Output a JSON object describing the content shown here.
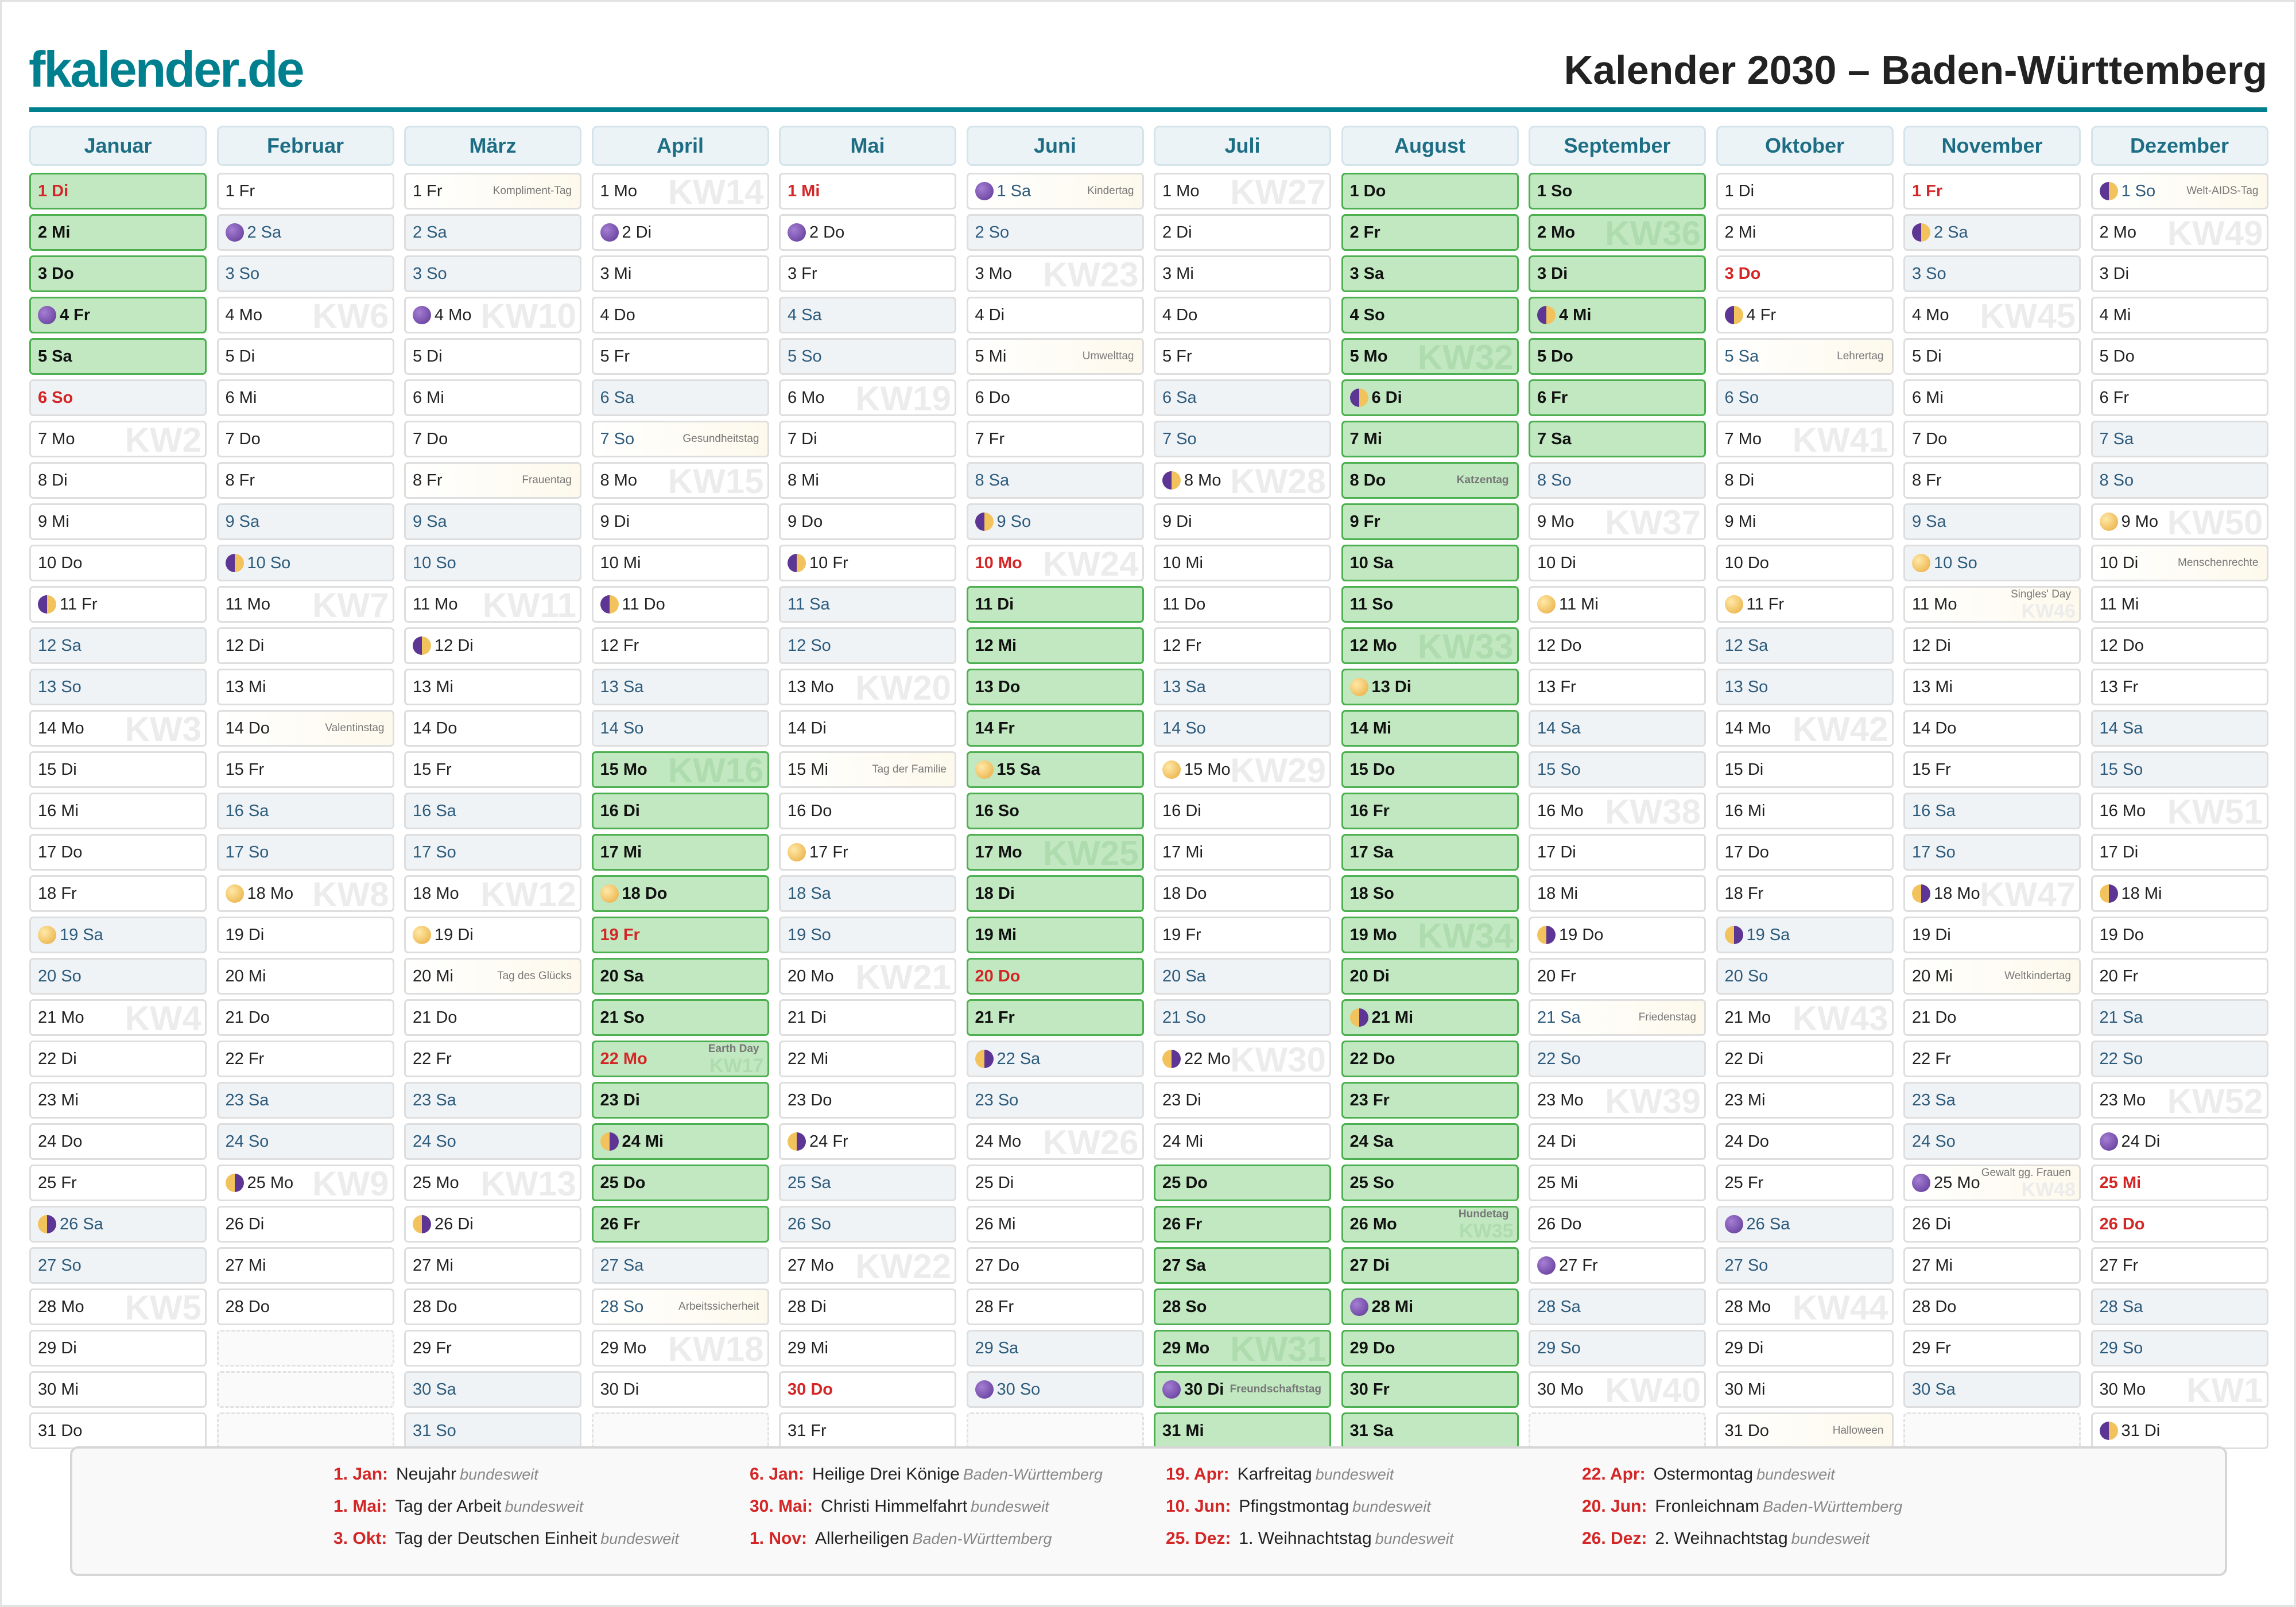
{
  "header": {
    "logo": "fkalender.de",
    "title": "Kalender 2030 – Baden-Württemberg"
  },
  "colors": {
    "brand": "#00808f",
    "holiday": "#d42626",
    "vacation": "#c1e8c1",
    "vacation_border": "#4caf50",
    "weekend": "#eff3f6"
  },
  "months": [
    {
      "name": "Januar",
      "days": [
        "1 Di",
        "2 Mi",
        "3 Do",
        "4 Fr",
        "5 Sa",
        "6 So",
        "7 Mo",
        "8 Di",
        "9 Mi",
        "10 Do",
        "11 Fr",
        "12 Sa",
        "13 So",
        "14 Mo",
        "15 Di",
        "16 Mi",
        "17 Do",
        "18 Fr",
        "19 Sa",
        "20 So",
        "21 Mo",
        "22 Di",
        "23 Mi",
        "24 Do",
        "25 Fr",
        "26 Sa",
        "27 So",
        "28 Mo",
        "29 Di",
        "30 Mi",
        "31 Do"
      ],
      "holidays": [
        1,
        6
      ],
      "vacation": [
        1,
        2,
        3,
        4,
        5
      ],
      "kw": {
        "7": "KW2",
        "14": "KW3",
        "21": "KW4",
        "28": "KW5"
      },
      "moon": {
        "4": "new",
        "11": "fq",
        "19": "full",
        "26": "lq"
      },
      "notes": {}
    },
    {
      "name": "Februar",
      "days": [
        "1 Fr",
        "2 Sa",
        "3 So",
        "4 Mo",
        "5 Di",
        "6 Mi",
        "7 Do",
        "8 Fr",
        "9 Sa",
        "10 So",
        "11 Mo",
        "12 Di",
        "13 Mi",
        "14 Do",
        "15 Fr",
        "16 Sa",
        "17 So",
        "18 Mo",
        "19 Di",
        "20 Mi",
        "21 Do",
        "22 Fr",
        "23 Sa",
        "24 So",
        "25 Mo",
        "26 Di",
        "27 Mi",
        "28 Do"
      ],
      "holidays": [],
      "vacation": [],
      "kw": {
        "4": "KW6",
        "11": "KW7",
        "18": "KW8",
        "25": "KW9"
      },
      "moon": {
        "2": "new",
        "10": "fq",
        "18": "full",
        "25": "lq"
      },
      "notes": {
        "14": "Valentinstag"
      }
    },
    {
      "name": "März",
      "days": [
        "1 Fr",
        "2 Sa",
        "3 So",
        "4 Mo",
        "5 Di",
        "6 Mi",
        "7 Do",
        "8 Fr",
        "9 Sa",
        "10 So",
        "11 Mo",
        "12 Di",
        "13 Mi",
        "14 Do",
        "15 Fr",
        "16 Sa",
        "17 So",
        "18 Mo",
        "19 Di",
        "20 Mi",
        "21 Do",
        "22 Fr",
        "23 Sa",
        "24 So",
        "25 Mo",
        "26 Di",
        "27 Mi",
        "28 Do",
        "29 Fr",
        "30 Sa",
        "31 So"
      ],
      "holidays": [],
      "vacation": [],
      "kw": {
        "4": "KW10",
        "11": "KW11",
        "18": "KW12",
        "25": "KW13"
      },
      "moon": {
        "4": "new",
        "12": "fq",
        "19": "full",
        "26": "lq"
      },
      "notes": {
        "1": "Kompliment-Tag",
        "8": "Frauentag",
        "20": "Tag des Glücks"
      }
    },
    {
      "name": "April",
      "days": [
        "1 Mo",
        "2 Di",
        "3 Mi",
        "4 Do",
        "5 Fr",
        "6 Sa",
        "7 So",
        "8 Mo",
        "9 Di",
        "10 Mi",
        "11 Do",
        "12 Fr",
        "13 Sa",
        "14 So",
        "15 Mo",
        "16 Di",
        "17 Mi",
        "18 Do",
        "19 Fr",
        "20 Sa",
        "21 So",
        "22 Mo",
        "23 Di",
        "24 Mi",
        "25 Do",
        "26 Fr",
        "27 Sa",
        "28 So",
        "29 Mo",
        "30 Di"
      ],
      "holidays": [
        19,
        22
      ],
      "vacation": [
        15,
        16,
        17,
        18,
        19,
        20,
        21,
        22,
        23,
        24,
        25,
        26
      ],
      "kw": {
        "1": "KW14",
        "8": "KW15",
        "15": "KW16",
        "22": "KW17",
        "29": "KW18"
      },
      "moon": {
        "2": "new",
        "11": "fq",
        "18": "full",
        "24": "lq"
      },
      "notes": {
        "7": "Gesundheitstag",
        "22": "Earth Day",
        "28": "Arbeitssicherheit"
      }
    },
    {
      "name": "Mai",
      "days": [
        "1 Mi",
        "2 Do",
        "3 Fr",
        "4 Sa",
        "5 So",
        "6 Mo",
        "7 Di",
        "8 Mi",
        "9 Do",
        "10 Fr",
        "11 Sa",
        "12 So",
        "13 Mo",
        "14 Di",
        "15 Mi",
        "16 Do",
        "17 Fr",
        "18 Sa",
        "19 So",
        "20 Mo",
        "21 Di",
        "22 Mi",
        "23 Do",
        "24 Fr",
        "25 Sa",
        "26 So",
        "27 Mo",
        "28 Di",
        "29 Mi",
        "30 Do",
        "31 Fr"
      ],
      "holidays": [
        1,
        30
      ],
      "vacation": [],
      "kw": {
        "6": "KW19",
        "13": "KW20",
        "20": "KW21",
        "27": "KW22"
      },
      "moon": {
        "2": "new",
        "10": "fq",
        "17": "full",
        "24": "lq"
      },
      "notes": {
        "15": "Tag der Familie"
      }
    },
    {
      "name": "Juni",
      "days": [
        "1 Sa",
        "2 So",
        "3 Mo",
        "4 Di",
        "5 Mi",
        "6 Do",
        "7 Fr",
        "8 Sa",
        "9 So",
        "10 Mo",
        "11 Di",
        "12 Mi",
        "13 Do",
        "14 Fr",
        "15 Sa",
        "16 So",
        "17 Mo",
        "18 Di",
        "19 Mi",
        "20 Do",
        "21 Fr",
        "22 Sa",
        "23 So",
        "24 Mo",
        "25 Di",
        "26 Mi",
        "27 Do",
        "28 Fr",
        "29 Sa",
        "30 So"
      ],
      "holidays": [
        10,
        20
      ],
      "vacation": [
        11,
        12,
        13,
        14,
        15,
        16,
        17,
        18,
        19,
        20,
        21
      ],
      "kw": {
        "3": "KW23",
        "10": "KW24",
        "17": "KW25",
        "24": "KW26"
      },
      "moon": {
        "1": "new",
        "9": "fq",
        "15": "full",
        "22": "lq",
        "30": "new"
      },
      "notes": {
        "1": "Kindertag",
        "5": "Umwelttag"
      }
    },
    {
      "name": "Juli",
      "days": [
        "1 Mo",
        "2 Di",
        "3 Mi",
        "4 Do",
        "5 Fr",
        "6 Sa",
        "7 So",
        "8 Mo",
        "9 Di",
        "10 Mi",
        "11 Do",
        "12 Fr",
        "13 Sa",
        "14 So",
        "15 Mo",
        "16 Di",
        "17 Mi",
        "18 Do",
        "19 Fr",
        "20 Sa",
        "21 So",
        "22 Mo",
        "23 Di",
        "24 Mi",
        "25 Do",
        "26 Fr",
        "27 Sa",
        "28 So",
        "29 Mo",
        "30 Di",
        "31 Mi"
      ],
      "holidays": [],
      "vacation": [
        25,
        26,
        27,
        28,
        29,
        30,
        31
      ],
      "kw": {
        "1": "KW27",
        "8": "KW28",
        "15": "KW29",
        "22": "KW30",
        "29": "KW31"
      },
      "moon": {
        "8": "fq",
        "15": "full",
        "22": "lq",
        "30": "new"
      },
      "notes": {
        "30": "Freundschaftstag"
      }
    },
    {
      "name": "August",
      "days": [
        "1 Do",
        "2 Fr",
        "3 Sa",
        "4 So",
        "5 Mo",
        "6 Di",
        "7 Mi",
        "8 Do",
        "9 Fr",
        "10 Sa",
        "11 So",
        "12 Mo",
        "13 Di",
        "14 Mi",
        "15 Do",
        "16 Fr",
        "17 Sa",
        "18 So",
        "19 Mo",
        "20 Di",
        "21 Mi",
        "22 Do",
        "23 Fr",
        "24 Sa",
        "25 So",
        "26 Mo",
        "27 Di",
        "28 Mi",
        "29 Do",
        "30 Fr",
        "31 Sa"
      ],
      "holidays": [],
      "vacation": [
        1,
        2,
        3,
        4,
        5,
        6,
        7,
        8,
        9,
        10,
        11,
        12,
        13,
        14,
        15,
        16,
        17,
        18,
        19,
        20,
        21,
        22,
        23,
        24,
        25,
        26,
        27,
        28,
        29,
        30,
        31
      ],
      "kw": {
        "5": "KW32",
        "12": "KW33",
        "19": "KW34",
        "26": "KW35"
      },
      "moon": {
        "6": "fq",
        "13": "full",
        "21": "lq",
        "28": "new"
      },
      "notes": {
        "8": "Katzentag",
        "26": "Hundetag"
      }
    },
    {
      "name": "September",
      "days": [
        "1 So",
        "2 Mo",
        "3 Di",
        "4 Mi",
        "5 Do",
        "6 Fr",
        "7 Sa",
        "8 So",
        "9 Mo",
        "10 Di",
        "11 Mi",
        "12 Do",
        "13 Fr",
        "14 Sa",
        "15 So",
        "16 Mo",
        "17 Di",
        "18 Mi",
        "19 Do",
        "20 Fr",
        "21 Sa",
        "22 So",
        "23 Mo",
        "24 Di",
        "25 Mi",
        "26 Do",
        "27 Fr",
        "28 Sa",
        "29 So",
        "30 Mo"
      ],
      "holidays": [],
      "vacation": [
        1,
        2,
        3,
        4,
        5,
        6,
        7
      ],
      "kw": {
        "2": "KW36",
        "9": "KW37",
        "16": "KW38",
        "23": "KW39",
        "30": "KW40"
      },
      "moon": {
        "4": "fq",
        "11": "full",
        "19": "lq",
        "27": "new"
      },
      "notes": {
        "21": "Friedenstag"
      }
    },
    {
      "name": "Oktober",
      "days": [
        "1 Di",
        "2 Mi",
        "3 Do",
        "4 Fr",
        "5 Sa",
        "6 So",
        "7 Mo",
        "8 Di",
        "9 Mi",
        "10 Do",
        "11 Fr",
        "12 Sa",
        "13 So",
        "14 Mo",
        "15 Di",
        "16 Mi",
        "17 Do",
        "18 Fr",
        "19 Sa",
        "20 So",
        "21 Mo",
        "22 Di",
        "23 Mi",
        "24 Do",
        "25 Fr",
        "26 Sa",
        "27 So",
        "28 Mo",
        "29 Di",
        "30 Mi",
        "31 Do"
      ],
      "holidays": [
        3
      ],
      "vacation": [],
      "kw": {
        "7": "KW41",
        "14": "KW42",
        "21": "KW43",
        "28": "KW44"
      },
      "moon": {
        "4": "fq",
        "11": "full",
        "19": "lq",
        "26": "new"
      },
      "notes": {
        "5": "Lehrertag",
        "31": "Halloween"
      }
    },
    {
      "name": "November",
      "days": [
        "1 Fr",
        "2 Sa",
        "3 So",
        "4 Mo",
        "5 Di",
        "6 Mi",
        "7 Do",
        "8 Fr",
        "9 Sa",
        "10 So",
        "11 Mo",
        "12 Di",
        "13 Mi",
        "14 Do",
        "15 Fr",
        "16 Sa",
        "17 So",
        "18 Mo",
        "19 Di",
        "20 Mi",
        "21 Do",
        "22 Fr",
        "23 Sa",
        "24 So",
        "25 Mo",
        "26 Di",
        "27 Mi",
        "28 Do",
        "29 Fr",
        "30 Sa"
      ],
      "holidays": [
        1
      ],
      "vacation": [],
      "kw": {
        "4": "KW45",
        "11": "KW46",
        "18": "KW47",
        "25": "KW48"
      },
      "moon": {
        "2": "fq",
        "10": "full",
        "18": "lq",
        "25": "new"
      },
      "notes": {
        "11": "Singles' Day",
        "20": "Weltkindertag",
        "25": "Gewalt gg. Frauen"
      }
    },
    {
      "name": "Dezember",
      "days": [
        "1 So",
        "2 Mo",
        "3 Di",
        "4 Mi",
        "5 Do",
        "6 Fr",
        "7 Sa",
        "8 So",
        "9 Mo",
        "10 Di",
        "11 Mi",
        "12 Do",
        "13 Fr",
        "14 Sa",
        "15 So",
        "16 Mo",
        "17 Di",
        "18 Mi",
        "19 Do",
        "20 Fr",
        "21 Sa",
        "22 So",
        "23 Mo",
        "24 Di",
        "25 Mi",
        "26 Do",
        "27 Fr",
        "28 Sa",
        "29 So",
        "30 Mo",
        "31 Di"
      ],
      "holidays": [
        25,
        26
      ],
      "vacation": [],
      "kw": {
        "2": "KW49",
        "9": "KW50",
        "16": "KW51",
        "23": "KW52",
        "30": "KW1"
      },
      "moon": {
        "1": "fq",
        "9": "full",
        "18": "lq",
        "24": "new",
        "31": "fq"
      },
      "notes": {
        "1": "Welt-AIDS-Tag",
        "10": "Menschenrechte"
      }
    }
  ],
  "legend": [
    {
      "date": "1. Jan:",
      "name": "Neujahr",
      "region": "bundesweit"
    },
    {
      "date": "6. Jan:",
      "name": "Heilige Drei Könige",
      "region": "Baden-Württemberg"
    },
    {
      "date": "19. Apr:",
      "name": "Karfreitag",
      "region": "bundesweit"
    },
    {
      "date": "22. Apr:",
      "name": "Ostermontag",
      "region": "bundesweit"
    },
    {
      "date": "1. Mai:",
      "name": "Tag der Arbeit",
      "region": "bundesweit"
    },
    {
      "date": "30. Mai:",
      "name": "Christi Himmelfahrt",
      "region": "bundesweit"
    },
    {
      "date": "10. Jun:",
      "name": "Pfingstmontag",
      "region": "bundesweit"
    },
    {
      "date": "20. Jun:",
      "name": "Fronleichnam",
      "region": "Baden-Württemberg"
    },
    {
      "date": "3. Okt:",
      "name": "Tag der Deutschen Einheit",
      "region": "bundesweit"
    },
    {
      "date": "1. Nov:",
      "name": "Allerheiligen",
      "region": "Baden-Württemberg"
    },
    {
      "date": "25. Dez:",
      "name": "1. Weihnachtstag",
      "region": "bundesweit"
    },
    {
      "date": "26. Dez:",
      "name": "2. Weihnachtstag",
      "region": "bundesweit"
    }
  ]
}
